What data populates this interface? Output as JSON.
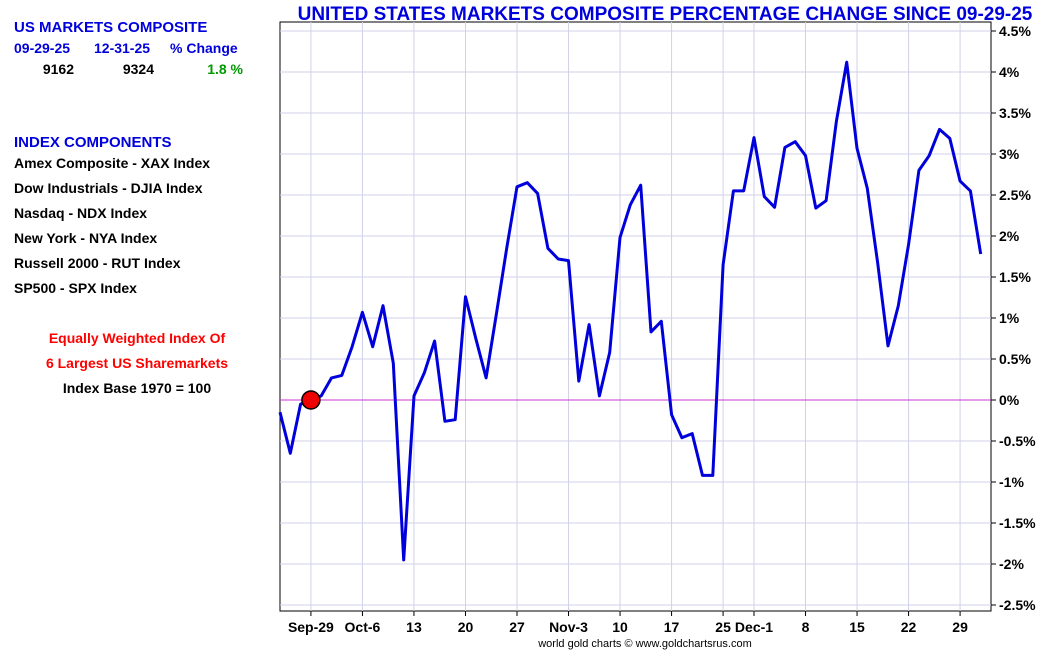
{
  "panel": {
    "heading": "US MARKETS COMPOSITE",
    "col_start": "09-29-25",
    "col_end": "12-31-25",
    "col_change": "% Change",
    "val_start": "9162",
    "val_end": "9324",
    "val_change": "1.8 %",
    "components_heading": "INDEX COMPONENTS",
    "components": [
      "Amex Composite - XAX Index",
      "Dow Industrials - DJIA Index",
      "Nasdaq - NDX Index",
      "New York - NYA Index",
      "Russell 2000 - RUT Index",
      "SP500 - SPX Index"
    ],
    "note_line1": "Equally Weighted Index Of",
    "note_line2": "6 Largest US Sharemarkets",
    "note_line3": "Index Base 1970 = 100"
  },
  "colors": {
    "series": "#0000dd",
    "title": "#0000dd",
    "zero_line": "#cc33cc",
    "grid": "#d0d0e8",
    "marker": "#ee0000",
    "positive": "#009900"
  },
  "chart_data": {
    "type": "line",
    "title": "UNITED STATES MARKETS COMPOSITE PERCENTAGE CHANGE SINCE 09-29-25",
    "credit": "world gold charts © www.goldchartsrus.com",
    "xlabel": "",
    "ylabel": "",
    "ylim": [
      -2.5,
      4.5
    ],
    "y_ticks": [
      4.5,
      4,
      3.5,
      3,
      2.5,
      2,
      1.5,
      1,
      0.5,
      0,
      -0.5,
      -1,
      -1.5,
      -2,
      -2.5
    ],
    "y_tick_labels": [
      "4.5%",
      "4%",
      "3.5%",
      "3%",
      "2.5%",
      "2%",
      "1.5%",
      "1%",
      "0.5%",
      "0%",
      "-0.5%",
      "-1%",
      "-1.5%",
      "-2%",
      "-2.5%"
    ],
    "x_tick_labels": [
      "Sep-29",
      "Oct-6",
      "13",
      "20",
      "27",
      "Nov-3",
      "10",
      "17",
      "25",
      "Dec-1",
      "8",
      "15",
      "22",
      "29"
    ],
    "x_tick_index": [
      3,
      8,
      13,
      18,
      23,
      28,
      33,
      38,
      43,
      46,
      51,
      56,
      61,
      66
    ],
    "x_count": 70,
    "reference_line": 0,
    "marker_index": 3,
    "series": [
      {
        "name": "US Markets Composite % change",
        "values": [
          -0.15,
          -0.65,
          -0.05,
          0.0,
          0.05,
          0.27,
          0.3,
          0.65,
          1.07,
          0.65,
          1.15,
          0.45,
          -1.95,
          0.05,
          0.33,
          0.72,
          -0.26,
          -0.24,
          1.26,
          0.75,
          0.27,
          1.05,
          1.85,
          2.6,
          2.65,
          2.52,
          1.85,
          1.72,
          1.7,
          0.23,
          0.92,
          0.05,
          0.58,
          1.98,
          2.38,
          2.62,
          0.83,
          0.96,
          -0.18,
          -0.46,
          -0.41,
          -0.92,
          -0.92,
          1.65,
          2.55,
          2.55,
          3.2,
          2.48,
          2.35,
          3.08,
          3.15,
          2.98,
          2.34,
          2.43,
          3.4,
          4.12,
          3.07,
          2.58,
          1.67,
          0.66,
          1.15,
          1.9,
          2.8,
          2.98,
          3.3,
          3.19,
          2.67,
          2.55,
          1.78
        ]
      }
    ]
  }
}
